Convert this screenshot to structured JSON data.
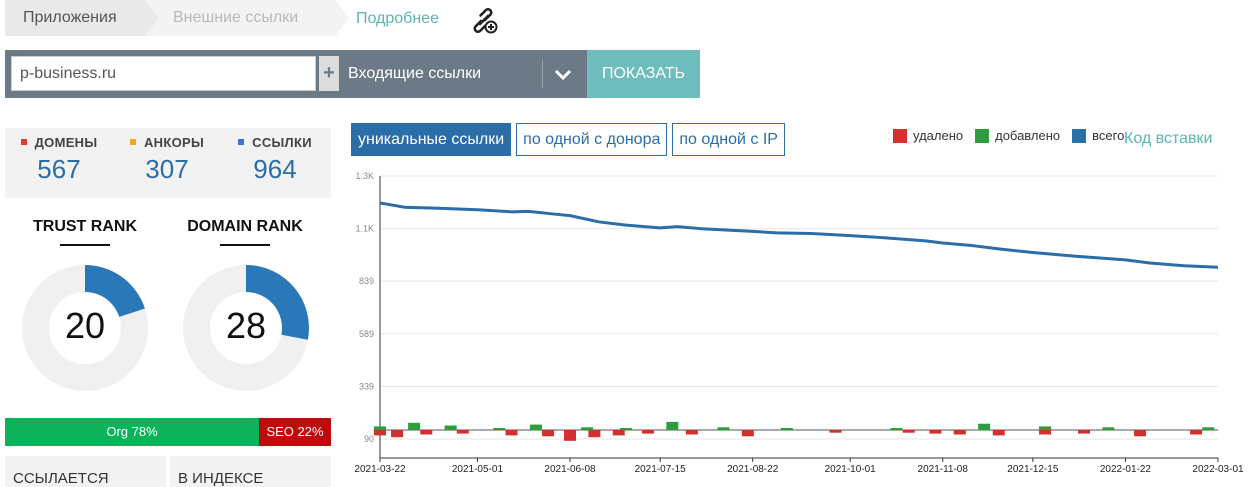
{
  "breadcrumb": {
    "item1": "Приложения",
    "item2": "Внешние ссылки"
  },
  "more_link": "Подробнее",
  "search": {
    "value": "p-business.ru",
    "plus_label": "+",
    "select_value": "Входящие ссылки",
    "show_label": "ПОКАЗАТЬ"
  },
  "stats": [
    {
      "label": "ДОМЕНЫ",
      "value": "567",
      "color": "#e53935"
    },
    {
      "label": "АНКОРЫ",
      "value": "307",
      "color": "#f5a623"
    },
    {
      "label": "ССЫЛКИ",
      "value": "964",
      "color": "#3f6fd8"
    }
  ],
  "trust_rank": {
    "title": "TRUST RANK",
    "value": "20",
    "fraction": 0.2
  },
  "domain_rank": {
    "title": "DOMAIN RANK",
    "value": "28",
    "fraction": 0.28
  },
  "org_label": "Org 78%",
  "seo_label": "SEO 22%",
  "org_fraction": 0.78,
  "bottom_tabs": [
    "ССЫЛАЕТСЯ",
    "В ИНДЕКСЕ"
  ],
  "chart_controls": [
    "уникальные ссылки",
    "по одной с донора",
    "по одной с IP"
  ],
  "legend": [
    {
      "label": "удалено",
      "color": "#d32f2f"
    },
    {
      "label": "добавлено",
      "color": "#2e9d3c"
    },
    {
      "label": "всего",
      "color": "#2a6da7"
    }
  ],
  "embed_link": "Код вставки",
  "colors": {
    "accent": "#2a6da7",
    "teal": "#6cbdbb",
    "bar_bg": "#6b7a86"
  },
  "chart_data": {
    "type": "line",
    "title": "",
    "xlabel": "",
    "ylabel": "",
    "ylim": [
      0,
      1300
    ],
    "y_ticks": [
      90,
      339,
      589,
      839,
      "1.1K",
      "1.3K"
    ],
    "y_tick_values": [
      90,
      339,
      589,
      839,
      1088,
      1338
    ],
    "x_ticks": [
      "2021-03-22",
      "2021-05-01",
      "2021-06-08",
      "2021-07-15",
      "2021-08-22",
      "2021-10-01",
      "2021-11-08",
      "2021-12-15",
      "2022-01-22",
      "2022-03-01"
    ],
    "series": [
      {
        "name": "всего",
        "x": [
          "2021-03-22",
          "2021-04-01",
          "2021-04-15",
          "2021-05-01",
          "2021-05-15",
          "2021-05-22",
          "2021-06-01",
          "2021-06-08",
          "2021-06-20",
          "2021-07-01",
          "2021-07-15",
          "2021-07-22",
          "2021-08-01",
          "2021-08-22",
          "2021-09-01",
          "2021-09-15",
          "2021-10-01",
          "2021-10-15",
          "2021-11-01",
          "2021-11-08",
          "2021-11-20",
          "2021-12-01",
          "2021-12-15",
          "2022-01-01",
          "2022-01-22",
          "2022-02-01",
          "2022-02-15",
          "2022-03-01"
        ],
        "values": [
          1210,
          1190,
          1185,
          1178,
          1168,
          1170,
          1158,
          1150,
          1120,
          1105,
          1092,
          1098,
          1088,
          1075,
          1068,
          1065,
          1055,
          1045,
          1030,
          1020,
          1008,
          992,
          975,
          958,
          940,
          925,
          912,
          905
        ]
      },
      {
        "name": "добавлено",
        "x": [
          "2021-03-22",
          "2021-04-05",
          "2021-04-20",
          "2021-05-10",
          "2021-05-25",
          "2021-06-15",
          "2021-07-01",
          "2021-07-20",
          "2021-08-10",
          "2021-09-05",
          "2021-10-20",
          "2021-11-25",
          "2021-12-20",
          "2022-01-15",
          "2022-02-25"
        ],
        "values": [
          4,
          8,
          5,
          2,
          6,
          3,
          2,
          9,
          3,
          2,
          1,
          7,
          4,
          3,
          3
        ]
      },
      {
        "name": "удалено",
        "x": [
          "2021-03-22",
          "2021-03-29",
          "2021-04-10",
          "2021-04-25",
          "2021-05-15",
          "2021-05-30",
          "2021-06-08",
          "2021-06-18",
          "2021-06-28",
          "2021-07-10",
          "2021-07-28",
          "2021-08-20",
          "2021-09-25",
          "2021-10-25",
          "2021-11-05",
          "2021-11-15",
          "2021-12-01",
          "2021-12-20",
          "2022-01-05",
          "2022-01-28",
          "2022-02-20"
        ],
        "values": [
          6,
          8,
          5,
          4,
          6,
          7,
          12,
          8,
          6,
          4,
          5,
          7,
          3,
          3,
          4,
          5,
          6,
          5,
          4,
          7,
          5
        ]
      }
    ]
  }
}
